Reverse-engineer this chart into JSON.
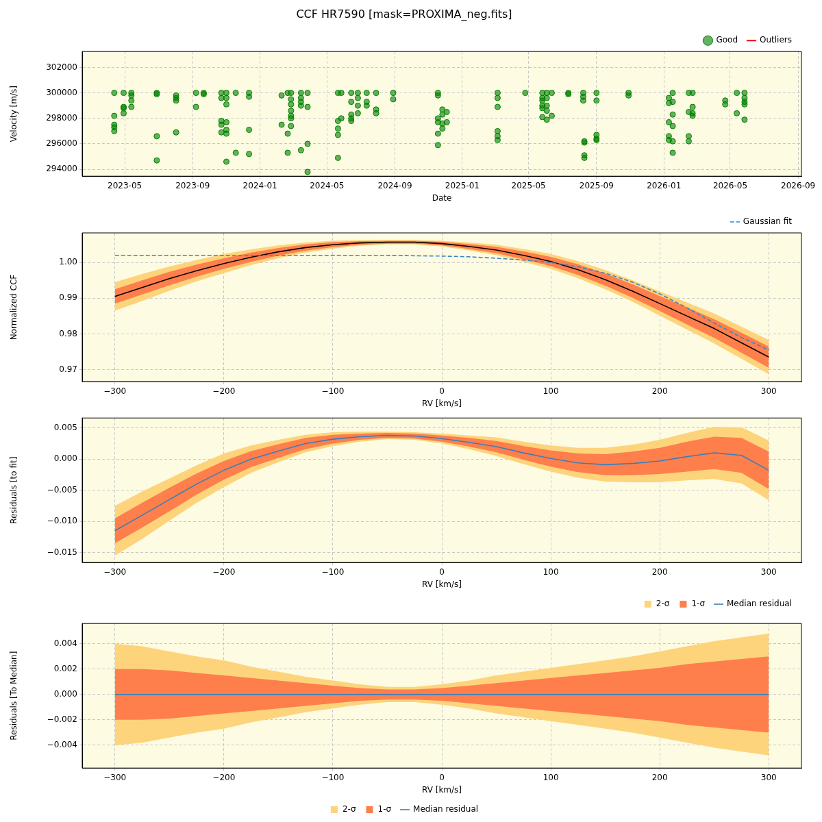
{
  "chart_data": [
    {
      "type": "scatter",
      "title": "CCF HR7590 [mask=PROXIMA_neg.fits]",
      "xlabel": "Date",
      "ylabel": "Velocity [m/s]",
      "xlim": [
        "2023-02-13",
        "2026-09-07"
      ],
      "xticks": [
        "2023-05",
        "2023-09",
        "2024-01",
        "2024-05",
        "2024-09",
        "2025-01",
        "2025-05",
        "2025-09",
        "2026-01",
        "2026-05",
        "2026-09"
      ],
      "ylim": [
        293460,
        303250
      ],
      "yticks": [
        294000,
        296000,
        298000,
        300000,
        302000
      ],
      "grid": true,
      "legend": "top right",
      "marker": "circle",
      "series": [
        {
          "name": "Good",
          "color": "#008000",
          "x": [
            "2023-04-12",
            "2023-04-12",
            "2023-04-12",
            "2023-04-12",
            "2023-04-12",
            "2023-04-29",
            "2023-04-29",
            "2023-04-29",
            "2023-04-29",
            "2023-05-13",
            "2023-05-13",
            "2023-05-13",
            "2023-05-13",
            "2023-06-28",
            "2023-06-28",
            "2023-06-28",
            "2023-06-28",
            "2023-08-02",
            "2023-08-02",
            "2023-08-02",
            "2023-08-02",
            "2023-09-07",
            "2023-09-07",
            "2023-09-21",
            "2023-09-21",
            "2023-10-23",
            "2023-10-23",
            "2023-10-23",
            "2023-10-23",
            "2023-10-23",
            "2023-11-01",
            "2023-11-01",
            "2023-11-01",
            "2023-11-01",
            "2023-11-01",
            "2023-11-01",
            "2023-11-01",
            "2023-11-18",
            "2023-11-18",
            "2023-12-12",
            "2023-12-12",
            "2023-12-12",
            "2023-12-12",
            "2024-02-09",
            "2024-02-09",
            "2024-02-20",
            "2024-02-20",
            "2024-02-20",
            "2024-02-26",
            "2024-02-26",
            "2024-02-26",
            "2024-02-26",
            "2024-02-26",
            "2024-02-26",
            "2024-02-26",
            "2024-03-15",
            "2024-03-15",
            "2024-03-15",
            "2024-03-15",
            "2024-03-15",
            "2024-03-27",
            "2024-03-27",
            "2024-03-27",
            "2024-03-27",
            "2024-05-21",
            "2024-05-21",
            "2024-05-21",
            "2024-05-21",
            "2024-05-21",
            "2024-05-27",
            "2024-05-27",
            "2024-06-14",
            "2024-06-14",
            "2024-06-14",
            "2024-06-14",
            "2024-06-14",
            "2024-06-26",
            "2024-06-26",
            "2024-06-26",
            "2024-06-26",
            "2024-07-12",
            "2024-07-12",
            "2024-07-12",
            "2024-07-29",
            "2024-07-29",
            "2024-07-29",
            "2024-08-29",
            "2024-08-29",
            "2024-11-18",
            "2024-11-18",
            "2024-11-18",
            "2024-11-18",
            "2024-11-18",
            "2024-11-18",
            "2024-11-26",
            "2024-11-26",
            "2024-11-26",
            "2024-11-26",
            "2024-12-04",
            "2024-12-04",
            "2025-03-06",
            "2025-03-06",
            "2025-03-06",
            "2025-03-06",
            "2025-03-06",
            "2025-03-06",
            "2025-04-25",
            "2025-05-26",
            "2025-05-26",
            "2025-05-26",
            "2025-05-26",
            "2025-05-26",
            "2025-05-26",
            "2025-06-03",
            "2025-06-03",
            "2025-06-03",
            "2025-06-03",
            "2025-06-03",
            "2025-06-12",
            "2025-06-12",
            "2025-07-12",
            "2025-07-12",
            "2025-08-08",
            "2025-08-08",
            "2025-08-08",
            "2025-08-10",
            "2025-08-10",
            "2025-08-10",
            "2025-08-10",
            "2025-09-01",
            "2025-09-01",
            "2025-09-01",
            "2025-09-01",
            "2025-09-01",
            "2025-10-29",
            "2025-10-29",
            "2026-01-10",
            "2026-01-10",
            "2026-01-10",
            "2026-01-10",
            "2026-01-10",
            "2026-01-17",
            "2026-01-17",
            "2026-01-17",
            "2026-01-17",
            "2026-01-17",
            "2026-01-17",
            "2026-02-15",
            "2026-02-15",
            "2026-02-15",
            "2026-02-15",
            "2026-02-22",
            "2026-02-22",
            "2026-02-22",
            "2026-02-22",
            "2026-04-22",
            "2026-04-22",
            "2026-05-13",
            "2026-05-13",
            "2026-05-27",
            "2026-05-27",
            "2026-05-27",
            "2026-05-27",
            "2026-05-27"
          ],
          "values": [
            300000,
            298200,
            297500,
            297300,
            297000,
            300000,
            298900,
            298800,
            298400,
            300000,
            299800,
            299400,
            298900,
            300000,
            299900,
            296600,
            294700,
            299800,
            299600,
            299400,
            296900,
            300000,
            298900,
            300000,
            299900,
            300000,
            299600,
            297800,
            297500,
            296900,
            300000,
            299600,
            299100,
            297700,
            297100,
            296800,
            294600,
            300000,
            295300,
            300000,
            299700,
            297100,
            295200,
            299800,
            297500,
            300000,
            296800,
            295300,
            300000,
            299500,
            299100,
            298600,
            298200,
            298000,
            297400,
            300000,
            299600,
            299300,
            299000,
            295500,
            300000,
            298900,
            296000,
            293800,
            300000,
            297800,
            297200,
            296700,
            294900,
            300000,
            298000,
            300000,
            299300,
            298300,
            298000,
            297800,
            300000,
            299600,
            299000,
            298400,
            300000,
            299300,
            299000,
            300000,
            298700,
            298400,
            300000,
            299500,
            300000,
            299800,
            298000,
            297700,
            296800,
            295900,
            298700,
            298300,
            297600,
            297200,
            298500,
            297700,
            300000,
            299600,
            298900,
            297000,
            296600,
            296300,
            300000,
            300000,
            299600,
            299400,
            299000,
            298800,
            298100,
            300000,
            299600,
            299000,
            298600,
            297900,
            300000,
            298200,
            300000,
            299900,
            300000,
            299700,
            299400,
            296200,
            296100,
            295100,
            294900,
            300000,
            299400,
            296700,
            296400,
            296300,
            300000,
            299800,
            299600,
            299200,
            297700,
            296600,
            296300,
            300000,
            299300,
            298300,
            297400,
            296200,
            295300,
            300000,
            298500,
            296600,
            296200,
            300000,
            298900,
            298400,
            298200,
            299400,
            299100,
            300000,
            298400,
            300000,
            299600,
            299300,
            299100,
            297900
          ]
        },
        {
          "name": "Outliers",
          "color": "#ff0000"
        }
      ]
    },
    {
      "type": "line",
      "xlabel": "RV [km/s]",
      "ylabel": "Normalized CCF",
      "x": [
        -300,
        -275,
        -250,
        -225,
        -200,
        -175,
        -150,
        -125,
        -100,
        -75,
        -50,
        -25,
        0,
        25,
        50,
        75,
        100,
        125,
        150,
        175,
        200,
        225,
        250,
        275,
        300
      ],
      "xlim": [
        -330,
        330
      ],
      "xticks": [
        {
          "value": -300,
          "label": "−300"
        },
        {
          "value": -200,
          "label": "−200"
        },
        {
          "value": -100,
          "label": "−100"
        },
        0,
        100,
        200,
        300
      ],
      "ylim": [
        0.9666,
        1.0083
      ],
      "yticks": [
        0.97,
        0.98,
        0.99,
        {
          "value": 1,
          "label": "1.00"
        }
      ],
      "grid": true,
      "legend": "top right",
      "series": [
        {
          "color": "#fdd47c",
          "values": [
            null,
            null,
            null,
            null,
            null,
            null,
            null,
            null,
            null,
            null,
            null,
            null,
            null,
            null,
            null,
            null,
            null,
            null,
            null,
            null,
            null,
            null,
            null,
            null,
            null
          ],
          "upper": [
            0.9945,
            0.9968,
            0.9989,
            1.0007,
            1.0024,
            1.0037,
            1.0048,
            1.0056,
            1.0061,
            1.0063,
            1.0063,
            1.0063,
            1.0061,
            1.0056,
            1.005,
            1.0038,
            1.0024,
            1.0004,
            0.9979,
            0.995,
            0.9919,
            0.9888,
            0.9857,
            0.982,
            0.9783
          ],
          "lower": [
            0.9865,
            0.9892,
            0.9921,
            0.9947,
            0.997,
            0.9993,
            1.0012,
            1.0028,
            1.0039,
            1.0047,
            1.0051,
            1.0051,
            1.0045,
            1.0034,
            1.002,
            1.0002,
            0.9982,
            0.9956,
            0.9925,
            0.989,
            0.9851,
            0.9812,
            0.9773,
            0.973,
            0.9687
          ]
        },
        {
          "color": "#fe7f4c",
          "values": [
            null,
            null,
            null,
            null,
            null,
            null,
            null,
            null,
            null,
            null,
            null,
            null,
            null,
            null,
            null,
            null,
            null,
            null,
            null,
            null,
            null,
            null,
            null,
            null,
            null
          ],
          "upper": [
            0.9925,
            0.995,
            0.9974,
            0.9994,
            1.0012,
            1.0028,
            1.0041,
            1.0051,
            1.0057,
            1.006,
            1.0061,
            1.0061,
            1.0058,
            1.0052,
            1.0044,
            1.0031,
            1.0016,
            0.9995,
            0.9969,
            0.9939,
            0.9906,
            0.9874,
            0.9841,
            0.9803,
            0.9765
          ],
          "lower": [
            0.9885,
            0.991,
            0.9936,
            0.996,
            0.9982,
            1.0002,
            1.0019,
            1.0033,
            1.0043,
            1.005,
            1.0053,
            1.0053,
            1.0048,
            1.0038,
            1.0026,
            1.0009,
            0.999,
            0.9965,
            0.9935,
            0.9901,
            0.9864,
            0.9826,
            0.9789,
            0.9747,
            0.9705
          ]
        },
        {
          "color": "#000000",
          "values": [
            0.9905,
            0.993,
            0.9955,
            0.9977,
            0.9997,
            1.0015,
            1.003,
            1.0042,
            1.005,
            1.0055,
            1.0057,
            1.0057,
            1.0053,
            1.0045,
            1.0035,
            1.002,
            1.0003,
            0.998,
            0.9952,
            0.992,
            0.9885,
            0.985,
            0.9815,
            0.9775,
            0.9735
          ]
        },
        {
          "name": "Gaussian fit",
          "color": "#3a86c8",
          "line_style": "dashed",
          "values": [
            1.002,
            1.002,
            1.002,
            1.002,
            1.002,
            1.002,
            1.002,
            1.002,
            1.002,
            1.002,
            1.002,
            1.0019,
            1.0018,
            1.0016,
            1.0012,
            1.0007,
            1.0,
            0.9988,
            0.997,
            0.9945,
            0.9912,
            0.9873,
            0.983,
            0.979,
            0.9755
          ]
        }
      ]
    },
    {
      "type": "line",
      "xlabel": "RV [km/s]",
      "ylabel": "Residuals [to fit]",
      "x": [
        -300,
        -275,
        -250,
        -225,
        -200,
        -175,
        -150,
        -125,
        -100,
        -75,
        -50,
        -25,
        0,
        25,
        50,
        75,
        100,
        125,
        150,
        175,
        200,
        225,
        250,
        275,
        300
      ],
      "xlim": [
        -330,
        330
      ],
      "xticks": [
        {
          "value": -300,
          "label": "−300"
        },
        {
          "value": -200,
          "label": "−200"
        },
        {
          "value": -100,
          "label": "−100"
        },
        0,
        100,
        200,
        300
      ],
      "ylim": [
        -0.0166,
        0.0066
      ],
      "yticks": [
        {
          "value": -0.015,
          "label": "−0.015"
        },
        {
          "value": -0.01,
          "label": "−0.010"
        },
        {
          "value": -0.005,
          "label": "−0.005"
        },
        {
          "value": 0,
          "label": "0.000"
        },
        {
          "value": 0.005,
          "label": "0.005"
        }
      ],
      "grid": true,
      "legend": "bottom right",
      "series": [
        {
          "name": "2-σ",
          "color": "#fdd47c",
          "values": [
            null,
            null,
            null,
            null,
            null,
            null,
            null,
            null,
            null,
            null,
            null,
            null,
            null,
            null,
            null,
            null,
            null,
            null,
            null,
            null,
            null,
            null,
            null,
            null,
            null
          ],
          "upper": [
            -0.0075,
            -0.0052,
            -0.0031,
            -0.001,
            0.0009,
            0.0022,
            0.0031,
            0.0039,
            0.0043,
            0.0044,
            0.0044,
            0.0043,
            0.0041,
            0.0038,
            0.0035,
            0.0028,
            0.0022,
            0.0018,
            0.0018,
            0.0023,
            0.0031,
            0.0042,
            0.0052,
            0.0051,
            0.003
          ],
          "lower": [
            -0.0155,
            -0.0128,
            -0.0099,
            -0.007,
            -0.0045,
            -0.0022,
            -0.0005,
            0.0011,
            0.0021,
            0.0028,
            0.0032,
            0.0031,
            0.0025,
            0.0016,
            0.0005,
            -0.0008,
            -0.002,
            -0.003,
            -0.0036,
            -0.0037,
            -0.0037,
            -0.0034,
            -0.0032,
            -0.0039,
            -0.0066
          ]
        },
        {
          "name": "1-σ",
          "color": "#fe7f4c",
          "values": [
            null,
            null,
            null,
            null,
            null,
            null,
            null,
            null,
            null,
            null,
            null,
            null,
            null,
            null,
            null,
            null,
            null,
            null,
            null,
            null,
            null,
            null,
            null,
            null,
            null
          ],
          "upper": [
            -0.0095,
            -0.007,
            -0.0046,
            -0.0023,
            -0.0003,
            0.0013,
            0.0024,
            0.0034,
            0.0039,
            0.0041,
            0.0042,
            0.0041,
            0.0038,
            0.0034,
            0.0029,
            0.0021,
            0.0014,
            0.0009,
            0.0008,
            0.0012,
            0.0018,
            0.0028,
            0.0036,
            0.0034,
            0.0012
          ],
          "lower": [
            -0.0135,
            -0.011,
            -0.0084,
            -0.0057,
            -0.0033,
            -0.0013,
            0.0002,
            0.0016,
            0.0025,
            0.0031,
            0.0034,
            0.0033,
            0.0028,
            0.002,
            0.0011,
            -0.0001,
            -0.0012,
            -0.0021,
            -0.0026,
            -0.0026,
            -0.0024,
            -0.002,
            -0.0016,
            -0.0022,
            -0.0048
          ]
        },
        {
          "name": "Median residual",
          "color": "#3a7fb8",
          "values": [
            -0.0115,
            -0.009,
            -0.0065,
            -0.004,
            -0.0018,
            0.0,
            0.0013,
            0.0025,
            0.0032,
            0.0036,
            0.0038,
            0.0037,
            0.0033,
            0.0027,
            0.002,
            0.001,
            0.0001,
            -0.0006,
            -0.0009,
            -0.0007,
            -0.0003,
            0.0004,
            0.001,
            0.0006,
            -0.0018
          ]
        }
      ]
    },
    {
      "type": "line",
      "xlabel": "RV [km/s]",
      "ylabel": "Residuals [To Median]",
      "x": [
        -300,
        -275,
        -250,
        -225,
        -200,
        -175,
        -150,
        -125,
        -100,
        -75,
        -50,
        -25,
        0,
        25,
        50,
        75,
        100,
        125,
        150,
        175,
        200,
        225,
        250,
        275,
        300
      ],
      "xlim": [
        -330,
        330
      ],
      "xticks": [
        {
          "value": -300,
          "label": "−300"
        },
        {
          "value": -200,
          "label": "−200"
        },
        {
          "value": -100,
          "label": "−100"
        },
        0,
        100,
        200,
        300
      ],
      "ylim": [
        -0.0058,
        0.0056
      ],
      "yticks": [
        {
          "value": -0.004,
          "label": "−0.004"
        },
        {
          "value": -0.002,
          "label": "−0.002"
        },
        {
          "value": 0,
          "label": "0.000"
        },
        {
          "value": 0.002,
          "label": "0.002"
        },
        {
          "value": 0.004,
          "label": "0.004"
        }
      ],
      "grid": true,
      "legend": "bottom",
      "series": [
        {
          "name": "2-σ",
          "color": "#fdd47c",
          "values": [
            null,
            null,
            null,
            null,
            null,
            null,
            null,
            null,
            null,
            null,
            null,
            null,
            null,
            null,
            null,
            null,
            null,
            null,
            null,
            null,
            null,
            null,
            null,
            null,
            null
          ],
          "upper": [
            0.004,
            0.0038,
            0.0034,
            0.003,
            0.0027,
            0.0022,
            0.0018,
            0.0014,
            0.0011,
            0.0008,
            0.0006,
            0.0006,
            0.0008,
            0.0011,
            0.0015,
            0.0018,
            0.0021,
            0.0024,
            0.0027,
            0.003,
            0.0034,
            0.0038,
            0.0042,
            0.0045,
            0.0048
          ],
          "lower": [
            -0.004,
            -0.0038,
            -0.0034,
            -0.003,
            -0.0027,
            -0.0022,
            -0.0018,
            -0.0014,
            -0.0011,
            -0.0008,
            -0.0006,
            -0.0006,
            -0.0008,
            -0.0011,
            -0.0015,
            -0.0018,
            -0.0021,
            -0.0024,
            -0.0027,
            -0.003,
            -0.0034,
            -0.0038,
            -0.0042,
            -0.0045,
            -0.0048
          ]
        },
        {
          "name": "1-σ",
          "color": "#fe7f4c",
          "values": [
            null,
            null,
            null,
            null,
            null,
            null,
            null,
            null,
            null,
            null,
            null,
            null,
            null,
            null,
            null,
            null,
            null,
            null,
            null,
            null,
            null,
            null,
            null,
            null,
            null
          ],
          "upper": [
            0.002,
            0.002,
            0.0019,
            0.0017,
            0.0015,
            0.0013,
            0.0011,
            0.0009,
            0.0007,
            0.0005,
            0.0004,
            0.0004,
            0.0005,
            0.0007,
            0.0009,
            0.0011,
            0.0013,
            0.0015,
            0.0017,
            0.0019,
            0.0021,
            0.0024,
            0.0026,
            0.0028,
            0.003
          ],
          "lower": [
            -0.002,
            -0.002,
            -0.0019,
            -0.0017,
            -0.0015,
            -0.0013,
            -0.0011,
            -0.0009,
            -0.0007,
            -0.0005,
            -0.0004,
            -0.0004,
            -0.0005,
            -0.0007,
            -0.0009,
            -0.0011,
            -0.0013,
            -0.0015,
            -0.0017,
            -0.0019,
            -0.0021,
            -0.0024,
            -0.0026,
            -0.0028,
            -0.003
          ]
        },
        {
          "name": "Median residual",
          "color": "#3a7fb8",
          "values": [
            0,
            0,
            0,
            0,
            0,
            0,
            0,
            0,
            0,
            0,
            0,
            0,
            0,
            0,
            0,
            0,
            0,
            0,
            0,
            0,
            0,
            0,
            0,
            0,
            0
          ]
        }
      ]
    }
  ]
}
